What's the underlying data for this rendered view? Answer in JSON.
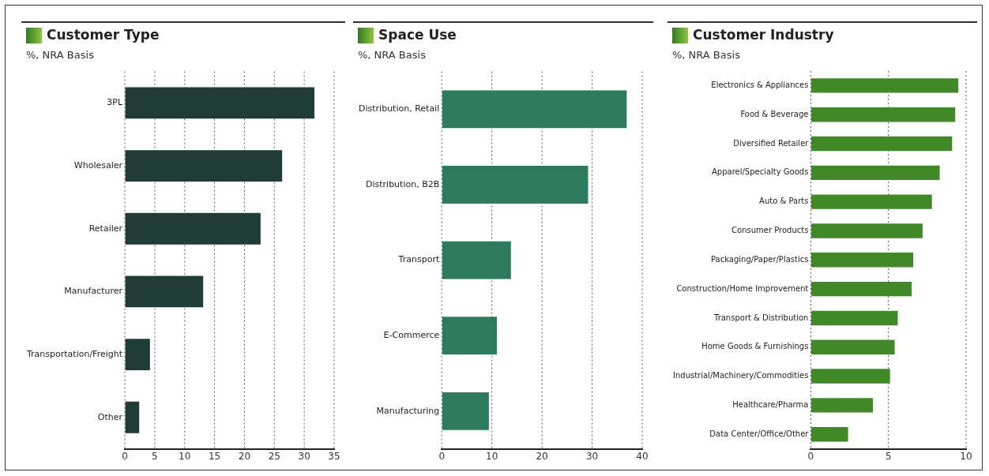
{
  "chart_data": [
    {
      "type": "bar",
      "orientation": "horizontal",
      "title": "Customer Type",
      "subtitle": "%, NRA Basis",
      "categories": [
        "3PL",
        "Wholesaler",
        "Retailer",
        "Manufacturer",
        "Transportation/Freight",
        "Other"
      ],
      "values": [
        31.7,
        26.3,
        22.7,
        13.1,
        4.2,
        2.4
      ],
      "color": "#1f3d36",
      "xlim": [
        0,
        35
      ],
      "xticks": [
        0,
        5,
        10,
        15,
        20,
        25,
        30,
        35
      ],
      "grid": "x",
      "legend": false
    },
    {
      "type": "bar",
      "orientation": "horizontal",
      "title": "Space Use",
      "subtitle": "%, NRA Basis",
      "categories": [
        "Distribution, Retail",
        "Distribution, B2B",
        "Transport",
        "E-Commerce",
        "Manufacturing"
      ],
      "values": [
        36.9,
        29.2,
        13.8,
        11.0,
        9.4
      ],
      "color": "#2e7a5c",
      "xlim": [
        0,
        40
      ],
      "xticks": [
        0,
        10,
        20,
        30,
        40
      ],
      "grid": "x",
      "legend": false
    },
    {
      "type": "bar",
      "orientation": "horizontal",
      "title": "Customer Industry",
      "subtitle": "%, NRA Basis",
      "categories": [
        "Electronics & Appliances",
        "Food & Beverage",
        "Diversified Retailer",
        "Apparel/Specialty Goods",
        "Auto & Parts",
        "Consumer Products",
        "Packaging/Paper/Plastics",
        "Construction/Home Improvement",
        "Transport & Distribution",
        "Home Goods & Furnishings",
        "Industrial/Machinery/Commodities",
        "Healthcare/Pharma",
        "Data Center/Office/Other"
      ],
      "values": [
        9.5,
        9.3,
        9.1,
        8.3,
        7.8,
        7.2,
        6.6,
        6.5,
        5.6,
        5.4,
        5.1,
        4.0,
        2.4
      ],
      "color": "#3f8a26",
      "xlim": [
        0,
        10
      ],
      "xticks": [
        0,
        5,
        10
      ],
      "grid": "x",
      "legend": false
    }
  ]
}
